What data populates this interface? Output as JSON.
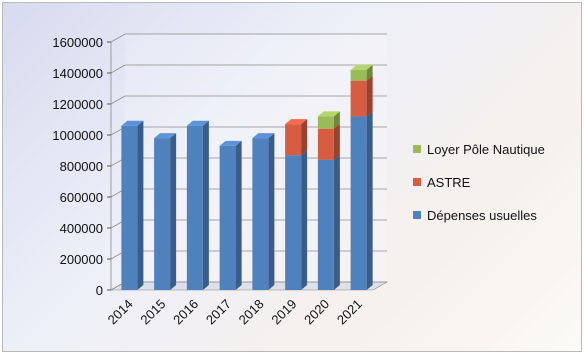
{
  "chart_data": {
    "type": "bar",
    "stacked": true,
    "three_d": true,
    "categories": [
      "2014",
      "2015",
      "2016",
      "2017",
      "2018",
      "2019",
      "2020",
      "2021"
    ],
    "series": [
      {
        "name": "Dépenses usuelles",
        "color": "#4f81bd",
        "values": [
          1060000,
          980000,
          1060000,
          930000,
          980000,
          870000,
          840000,
          1120000
        ]
      },
      {
        "name": "ASTRE",
        "color": "#d65c42",
        "values": [
          0,
          0,
          0,
          0,
          0,
          200000,
          200000,
          230000
        ]
      },
      {
        "name": "Loyer Pôle Nautique",
        "color": "#9bbb59",
        "values": [
          0,
          0,
          0,
          0,
          0,
          0,
          80000,
          70000
        ]
      }
    ],
    "ylim": [
      0,
      1600000
    ],
    "yticks": [
      0,
      200000,
      400000,
      600000,
      800000,
      1000000,
      1200000,
      1400000,
      1600000
    ],
    "grid": true,
    "legend_position": "right",
    "legend_order": [
      "Loyer Pôle Nautique",
      "ASTRE",
      "Dépenses usuelles"
    ]
  }
}
